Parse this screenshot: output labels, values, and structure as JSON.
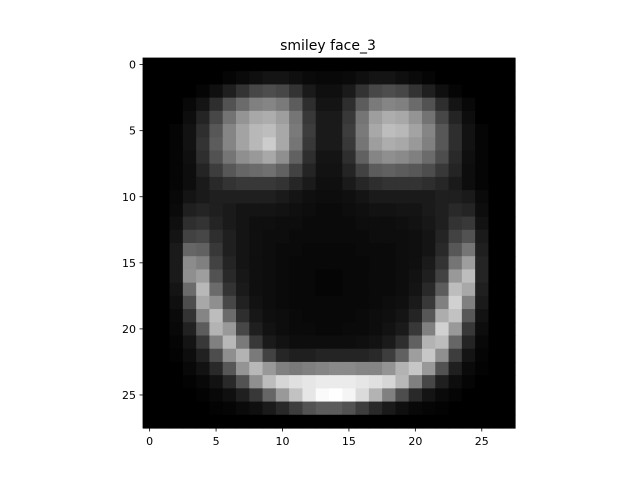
{
  "chart_data": {
    "type": "heatmap",
    "title": "smiley face_3",
    "colormap": "gray",
    "rows": 28,
    "cols": 28,
    "xticks": [
      0,
      5,
      10,
      15,
      20,
      25
    ],
    "yticks": [
      0,
      5,
      10,
      15,
      20,
      25
    ],
    "xlim": [
      -0.5,
      27.5
    ],
    "ylim": [
      27.5,
      -0.5
    ],
    "vmin": 0,
    "vmax": 1,
    "values": [
      [
        0,
        0,
        0,
        0,
        0,
        0,
        0,
        0,
        0,
        0,
        0,
        0,
        0,
        0,
        0,
        0,
        0,
        0,
        0,
        0,
        0,
        0,
        0,
        0,
        0,
        0,
        0,
        0
      ],
      [
        0,
        0,
        0,
        0,
        0,
        0,
        0.02,
        0.04,
        0.06,
        0.08,
        0.08,
        0.06,
        0.04,
        0.03,
        0.03,
        0.04,
        0.06,
        0.08,
        0.08,
        0.06,
        0.04,
        0.02,
        0,
        0,
        0,
        0,
        0,
        0
      ],
      [
        0,
        0,
        0,
        0,
        0.02,
        0.06,
        0.12,
        0.2,
        0.28,
        0.3,
        0.28,
        0.2,
        0.1,
        0.06,
        0.06,
        0.1,
        0.2,
        0.28,
        0.3,
        0.28,
        0.2,
        0.12,
        0.06,
        0.02,
        0,
        0,
        0,
        0
      ],
      [
        0,
        0,
        0,
        0.03,
        0.08,
        0.18,
        0.32,
        0.42,
        0.5,
        0.52,
        0.48,
        0.36,
        0.18,
        0.08,
        0.08,
        0.18,
        0.36,
        0.48,
        0.52,
        0.5,
        0.42,
        0.32,
        0.18,
        0.08,
        0.03,
        0,
        0,
        0
      ],
      [
        0,
        0,
        0,
        0.05,
        0.14,
        0.28,
        0.45,
        0.58,
        0.66,
        0.68,
        0.62,
        0.46,
        0.22,
        0.1,
        0.1,
        0.22,
        0.46,
        0.62,
        0.68,
        0.66,
        0.58,
        0.45,
        0.28,
        0.14,
        0.05,
        0,
        0,
        0
      ],
      [
        0,
        0,
        0.02,
        0.07,
        0.18,
        0.34,
        0.52,
        0.64,
        0.72,
        0.74,
        0.66,
        0.48,
        0.24,
        0.1,
        0.1,
        0.24,
        0.48,
        0.66,
        0.74,
        0.72,
        0.64,
        0.52,
        0.34,
        0.18,
        0.07,
        0.02,
        0,
        0
      ],
      [
        0,
        0,
        0.02,
        0.07,
        0.2,
        0.36,
        0.52,
        0.64,
        0.72,
        0.8,
        0.66,
        0.46,
        0.22,
        0.1,
        0.1,
        0.22,
        0.46,
        0.62,
        0.68,
        0.66,
        0.6,
        0.5,
        0.34,
        0.18,
        0.07,
        0.02,
        0,
        0
      ],
      [
        0,
        0,
        0.02,
        0.06,
        0.18,
        0.32,
        0.46,
        0.56,
        0.6,
        0.66,
        0.56,
        0.38,
        0.18,
        0.08,
        0.08,
        0.18,
        0.38,
        0.52,
        0.56,
        0.54,
        0.5,
        0.42,
        0.3,
        0.16,
        0.06,
        0.02,
        0,
        0
      ],
      [
        0,
        0,
        0.02,
        0.05,
        0.14,
        0.24,
        0.34,
        0.4,
        0.42,
        0.44,
        0.38,
        0.26,
        0.14,
        0.07,
        0.07,
        0.14,
        0.26,
        0.36,
        0.38,
        0.36,
        0.34,
        0.3,
        0.22,
        0.14,
        0.05,
        0.02,
        0,
        0
      ],
      [
        0,
        0,
        0.02,
        0.05,
        0.1,
        0.16,
        0.2,
        0.22,
        0.22,
        0.22,
        0.2,
        0.15,
        0.1,
        0.06,
        0.06,
        0.1,
        0.15,
        0.18,
        0.2,
        0.2,
        0.2,
        0.18,
        0.15,
        0.1,
        0.05,
        0.02,
        0,
        0
      ],
      [
        0,
        0,
        0.03,
        0.08,
        0.1,
        0.12,
        0.12,
        0.12,
        0.12,
        0.12,
        0.1,
        0.08,
        0.06,
        0.05,
        0.05,
        0.06,
        0.08,
        0.1,
        0.1,
        0.1,
        0.1,
        0.1,
        0.12,
        0.12,
        0.1,
        0.04,
        0,
        0
      ],
      [
        0,
        0,
        0.04,
        0.12,
        0.14,
        0.12,
        0.1,
        0.08,
        0.08,
        0.08,
        0.07,
        0.06,
        0.05,
        0.04,
        0.04,
        0.05,
        0.06,
        0.07,
        0.07,
        0.08,
        0.08,
        0.1,
        0.12,
        0.16,
        0.14,
        0.05,
        0,
        0
      ],
      [
        0,
        0,
        0.06,
        0.18,
        0.2,
        0.14,
        0.1,
        0.08,
        0.06,
        0.06,
        0.05,
        0.05,
        0.04,
        0.04,
        0.04,
        0.04,
        0.05,
        0.05,
        0.05,
        0.06,
        0.07,
        0.09,
        0.12,
        0.2,
        0.22,
        0.07,
        0,
        0
      ],
      [
        0,
        0,
        0.08,
        0.26,
        0.28,
        0.18,
        0.12,
        0.08,
        0.06,
        0.05,
        0.05,
        0.04,
        0.04,
        0.04,
        0.04,
        0.04,
        0.04,
        0.05,
        0.05,
        0.05,
        0.06,
        0.08,
        0.14,
        0.26,
        0.32,
        0.1,
        0,
        0
      ],
      [
        0,
        0,
        0.1,
        0.4,
        0.38,
        0.22,
        0.12,
        0.08,
        0.06,
        0.05,
        0.04,
        0.04,
        0.03,
        0.03,
        0.03,
        0.03,
        0.04,
        0.04,
        0.04,
        0.05,
        0.06,
        0.08,
        0.16,
        0.34,
        0.46,
        0.12,
        0,
        0
      ],
      [
        0,
        0,
        0.1,
        0.55,
        0.5,
        0.26,
        0.14,
        0.08,
        0.06,
        0.05,
        0.04,
        0.03,
        0.03,
        0.03,
        0.03,
        0.03,
        0.03,
        0.04,
        0.04,
        0.05,
        0.06,
        0.1,
        0.2,
        0.46,
        0.62,
        0.14,
        0,
        0
      ],
      [
        0,
        0,
        0.1,
        0.56,
        0.62,
        0.32,
        0.16,
        0.09,
        0.06,
        0.05,
        0.04,
        0.03,
        0.03,
        0.02,
        0.02,
        0.03,
        0.03,
        0.04,
        0.04,
        0.05,
        0.07,
        0.12,
        0.26,
        0.6,
        0.74,
        0.14,
        0,
        0
      ],
      [
        0,
        0,
        0.08,
        0.42,
        0.72,
        0.42,
        0.2,
        0.1,
        0.06,
        0.05,
        0.04,
        0.03,
        0.03,
        0.02,
        0.02,
        0.03,
        0.03,
        0.04,
        0.04,
        0.05,
        0.08,
        0.16,
        0.36,
        0.74,
        0.66,
        0.12,
        0,
        0
      ],
      [
        0,
        0,
        0.06,
        0.3,
        0.66,
        0.56,
        0.28,
        0.13,
        0.07,
        0.05,
        0.04,
        0.03,
        0.03,
        0.03,
        0.03,
        0.03,
        0.03,
        0.04,
        0.05,
        0.06,
        0.1,
        0.22,
        0.5,
        0.82,
        0.5,
        0.1,
        0,
        0
      ],
      [
        0,
        0,
        0.04,
        0.2,
        0.52,
        0.74,
        0.42,
        0.18,
        0.09,
        0.06,
        0.05,
        0.04,
        0.03,
        0.03,
        0.03,
        0.03,
        0.04,
        0.05,
        0.06,
        0.08,
        0.14,
        0.34,
        0.68,
        0.76,
        0.34,
        0.07,
        0,
        0
      ],
      [
        0,
        0,
        0.03,
        0.13,
        0.36,
        0.7,
        0.6,
        0.28,
        0.12,
        0.07,
        0.05,
        0.04,
        0.04,
        0.03,
        0.03,
        0.04,
        0.04,
        0.05,
        0.07,
        0.1,
        0.22,
        0.5,
        0.82,
        0.6,
        0.22,
        0.05,
        0,
        0
      ],
      [
        0,
        0,
        0.02,
        0.08,
        0.22,
        0.5,
        0.72,
        0.48,
        0.22,
        0.1,
        0.07,
        0.05,
        0.05,
        0.05,
        0.05,
        0.05,
        0.06,
        0.07,
        0.1,
        0.18,
        0.38,
        0.7,
        0.74,
        0.4,
        0.14,
        0.03,
        0,
        0
      ],
      [
        0,
        0,
        0.01,
        0.05,
        0.13,
        0.3,
        0.56,
        0.7,
        0.48,
        0.26,
        0.15,
        0.12,
        0.12,
        0.14,
        0.14,
        0.14,
        0.14,
        0.16,
        0.24,
        0.38,
        0.62,
        0.78,
        0.56,
        0.24,
        0.08,
        0.02,
        0,
        0
      ],
      [
        0,
        0,
        0,
        0.03,
        0.07,
        0.16,
        0.34,
        0.58,
        0.72,
        0.6,
        0.5,
        0.48,
        0.5,
        0.52,
        0.54,
        0.54,
        0.52,
        0.52,
        0.58,
        0.7,
        0.78,
        0.6,
        0.32,
        0.12,
        0.04,
        0.01,
        0,
        0
      ],
      [
        0,
        0,
        0,
        0.01,
        0.03,
        0.07,
        0.16,
        0.32,
        0.56,
        0.74,
        0.84,
        0.88,
        0.9,
        0.92,
        0.92,
        0.92,
        0.9,
        0.88,
        0.84,
        0.72,
        0.5,
        0.28,
        0.12,
        0.05,
        0.02,
        0,
        0,
        0
      ],
      [
        0,
        0,
        0,
        0,
        0.01,
        0.03,
        0.06,
        0.12,
        0.22,
        0.4,
        0.6,
        0.76,
        0.9,
        0.98,
        1.0,
        0.96,
        0.86,
        0.7,
        0.5,
        0.3,
        0.16,
        0.08,
        0.04,
        0.02,
        0,
        0,
        0,
        0
      ],
      [
        0,
        0,
        0,
        0,
        0,
        0.01,
        0.02,
        0.04,
        0.06,
        0.1,
        0.16,
        0.24,
        0.32,
        0.36,
        0.36,
        0.32,
        0.24,
        0.16,
        0.1,
        0.06,
        0.03,
        0.02,
        0.01,
        0,
        0,
        0,
        0,
        0
      ],
      [
        0,
        0,
        0,
        0,
        0,
        0,
        0,
        0,
        0,
        0,
        0,
        0,
        0,
        0,
        0,
        0,
        0,
        0,
        0,
        0,
        0,
        0,
        0,
        0,
        0,
        0,
        0,
        0
      ]
    ]
  }
}
